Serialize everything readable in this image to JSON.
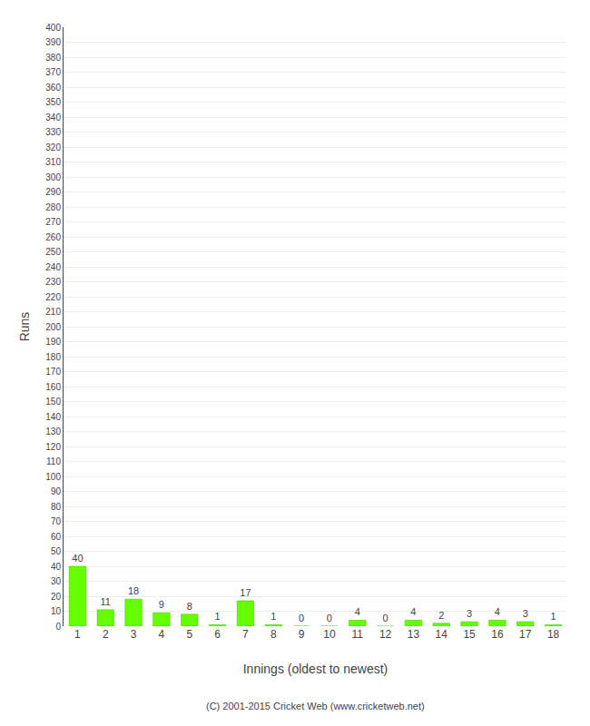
{
  "chart_data": {
    "type": "bar",
    "xlabel": "Innings (oldest to newest)",
    "ylabel": "Runs",
    "categories": [
      "1",
      "2",
      "3",
      "4",
      "5",
      "6",
      "7",
      "8",
      "9",
      "10",
      "11",
      "12",
      "13",
      "14",
      "15",
      "16",
      "17",
      "18"
    ],
    "values": [
      40,
      11,
      18,
      9,
      8,
      1,
      17,
      1,
      0,
      0,
      4,
      0,
      4,
      2,
      3,
      4,
      3,
      1
    ],
    "color": "#66ff00",
    "ylim": [
      0,
      400
    ],
    "yticks": [
      0,
      10,
      20,
      30,
      40,
      50,
      60,
      70,
      80,
      90,
      100,
      110,
      120,
      130,
      140,
      150,
      160,
      170,
      180,
      190,
      200,
      210,
      220,
      230,
      240,
      250,
      260,
      270,
      280,
      290,
      300,
      310,
      320,
      330,
      340,
      350,
      360,
      370,
      380,
      390,
      400
    ],
    "grid": true,
    "data_labels": true,
    "annotations": [
      "(C) 2001-2015 Cricket Web (www.cricketweb.net)"
    ]
  }
}
